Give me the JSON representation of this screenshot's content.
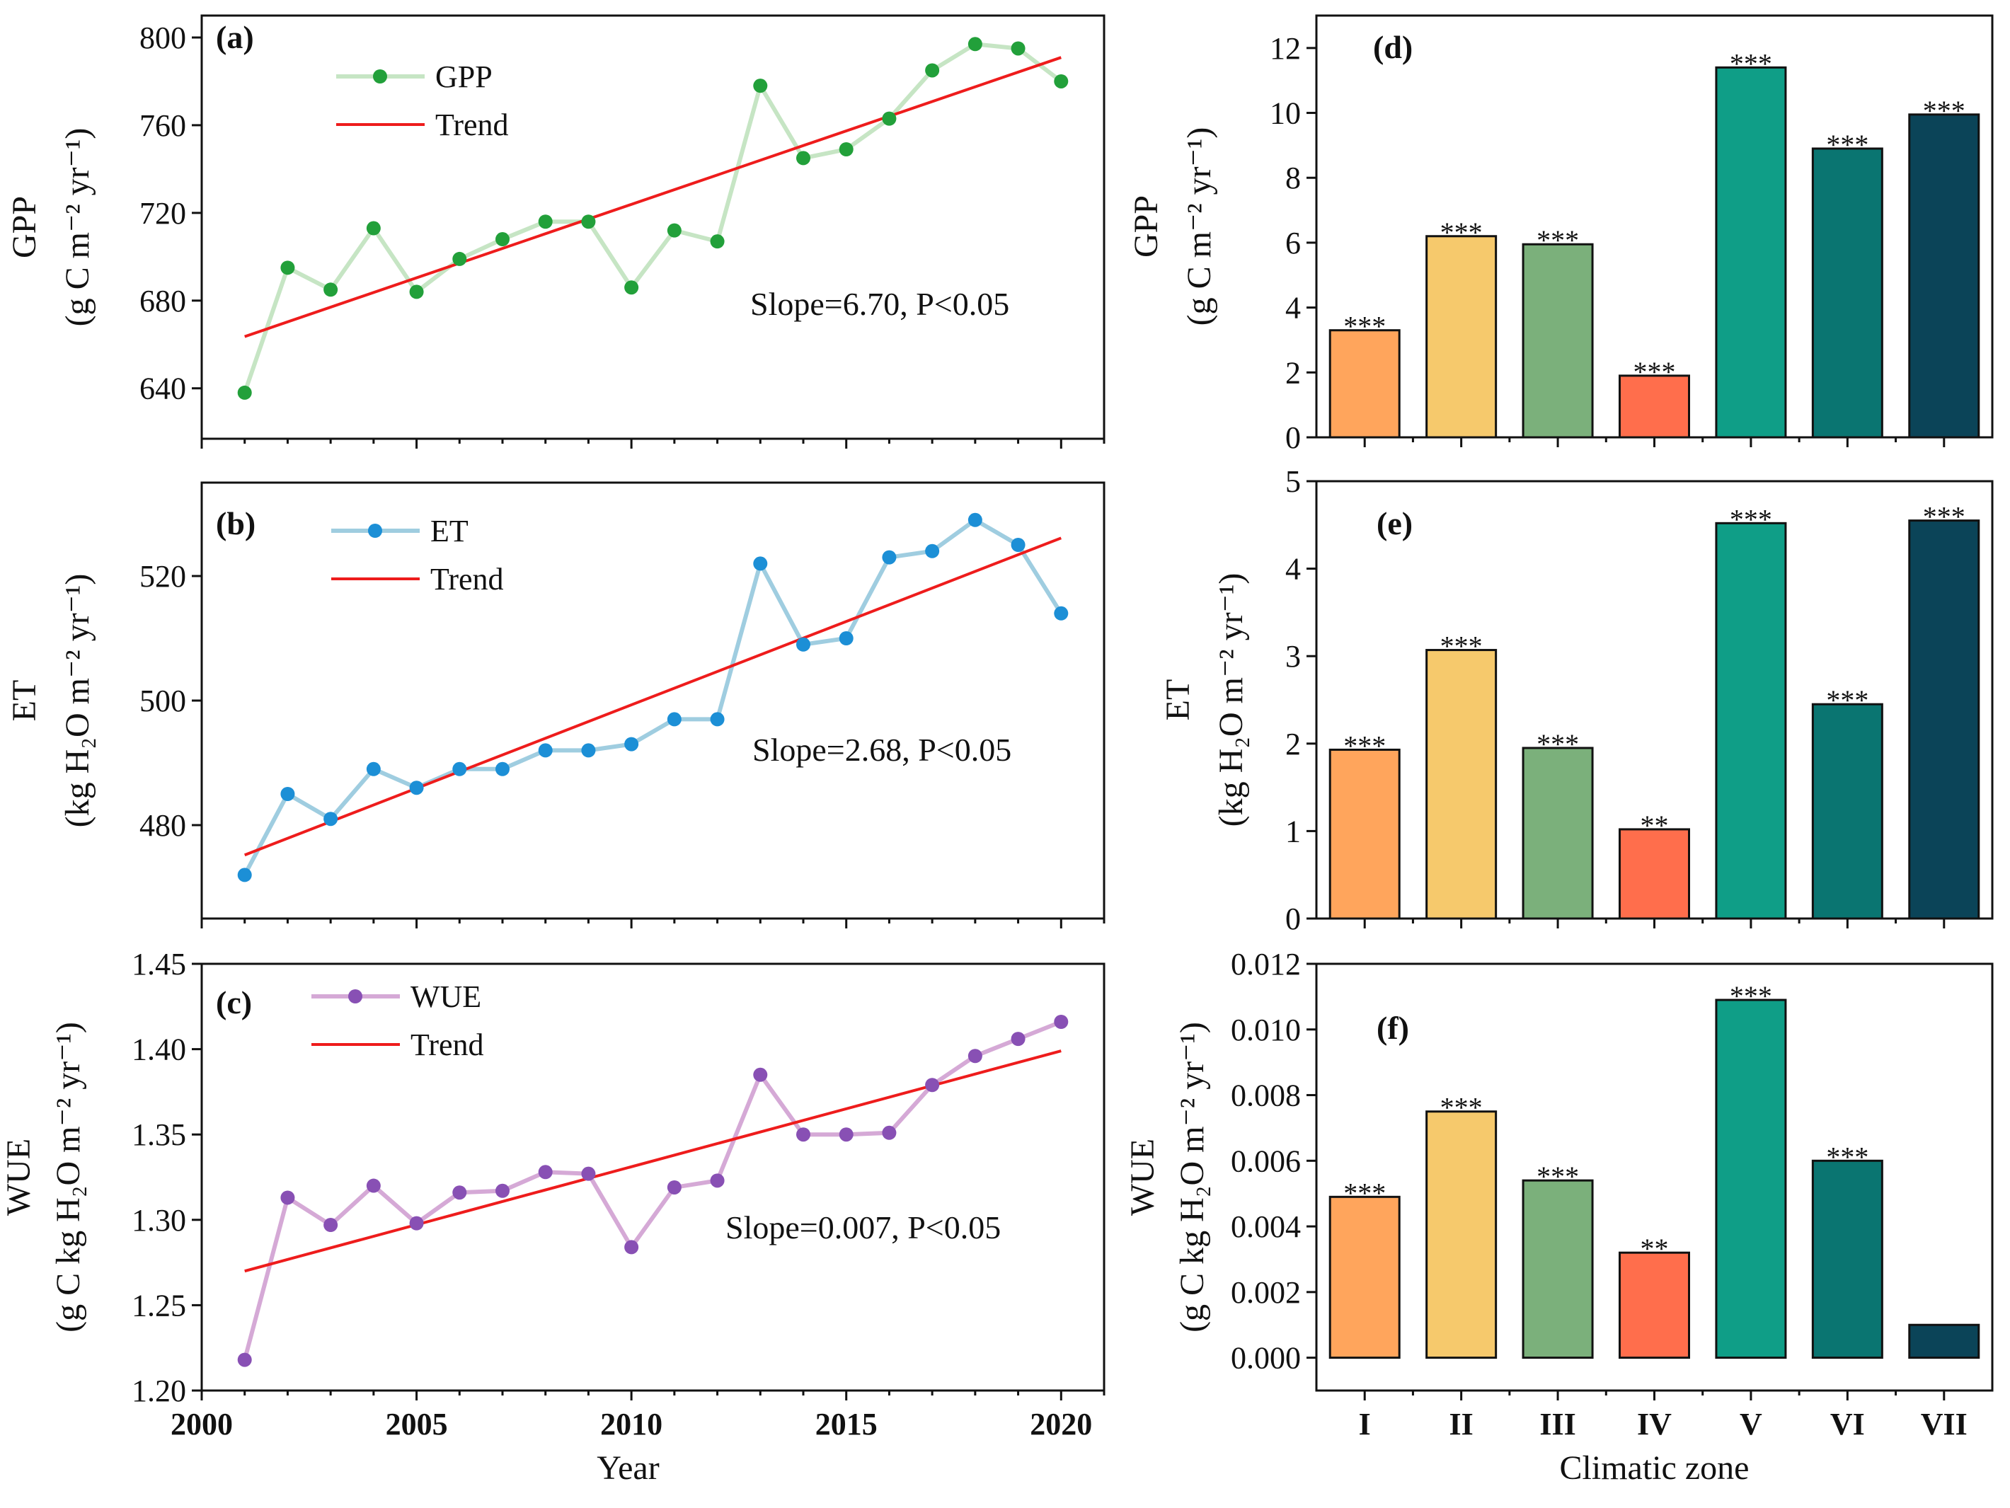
{
  "chart_data": [
    {
      "panel": "(a)",
      "type": "line",
      "x": [
        2001,
        2002,
        2003,
        2004,
        2005,
        2006,
        2007,
        2008,
        2009,
        2010,
        2011,
        2012,
        2013,
        2014,
        2015,
        2016,
        2017,
        2018,
        2019,
        2020
      ],
      "series": [
        {
          "name": "GPP",
          "color": "#22a03a",
          "line_color": "#c6e5c4",
          "values": [
            638,
            695,
            685,
            713,
            684,
            699,
            708,
            716,
            716,
            686,
            712,
            707,
            778,
            745,
            749,
            763,
            785,
            797,
            795,
            780
          ]
        },
        {
          "name": "Trend",
          "color": "#ee1c1c",
          "line": [
            663.6,
            790.9
          ]
        }
      ],
      "ylabel_main": "GPP",
      "ylabel_unit": "(g C m⁻² yr⁻¹)",
      "ylim": [
        617,
        810
      ],
      "yticks": [
        640,
        680,
        720,
        760,
        800
      ],
      "xlim": [
        2000,
        2021
      ],
      "annotation": "Slope=6.70, P<0.05"
    },
    {
      "panel": "(b)",
      "type": "line",
      "x": [
        2001,
        2002,
        2003,
        2004,
        2005,
        2006,
        2007,
        2008,
        2009,
        2010,
        2011,
        2012,
        2013,
        2014,
        2015,
        2016,
        2017,
        2018,
        2019,
        2020
      ],
      "series": [
        {
          "name": "ET",
          "color": "#1c8fd6",
          "line_color": "#9fcde0",
          "values": [
            472,
            485,
            481,
            489,
            486,
            489,
            489,
            492,
            492,
            493,
            497,
            497,
            522,
            509,
            510,
            523,
            524,
            529,
            525,
            514
          ]
        },
        {
          "name": "Trend",
          "color": "#ee1c1c",
          "line": [
            475.2,
            526.1
          ]
        }
      ],
      "ylabel_main": "ET",
      "ylabel_unit": "(kg H₂O m⁻² yr⁻¹)",
      "ylim": [
        465,
        535
      ],
      "yticks": [
        480,
        500,
        520
      ],
      "xlim": [
        2000,
        2021
      ],
      "annotation": "Slope=2.68, P<0.05"
    },
    {
      "panel": "(c)",
      "type": "line",
      "x": [
        2001,
        2002,
        2003,
        2004,
        2005,
        2006,
        2007,
        2008,
        2009,
        2010,
        2011,
        2012,
        2013,
        2014,
        2015,
        2016,
        2017,
        2018,
        2019,
        2020
      ],
      "series": [
        {
          "name": "WUE",
          "color": "#8850b4",
          "line_color": "#d5a9d6",
          "values": [
            1.218,
            1.313,
            1.297,
            1.32,
            1.298,
            1.316,
            1.317,
            1.328,
            1.327,
            1.284,
            1.319,
            1.323,
            1.385,
            1.35,
            1.35,
            1.351,
            1.379,
            1.396,
            1.406,
            1.416
          ]
        },
        {
          "name": "Trend",
          "color": "#ee1c1c",
          "line": [
            1.27,
            1.399
          ]
        }
      ],
      "ylabel_main": "WUE",
      "ylabel_unit": "(g C kg H₂O m⁻² yr⁻¹)",
      "ylim": [
        1.2,
        1.45
      ],
      "yticks": [
        1.2,
        1.25,
        1.3,
        1.35,
        1.4,
        1.45
      ],
      "xlim": [
        2000,
        2021
      ],
      "xticks": [
        2000,
        2005,
        2010,
        2015,
        2020
      ],
      "xlabel": "Year",
      "annotation": "Slope=0.007, P<0.05"
    },
    {
      "panel": "(d)",
      "type": "bar",
      "categories": [
        "I",
        "II",
        "III",
        "IV",
        "V",
        "VI",
        "VII"
      ],
      "values": [
        3.3,
        6.2,
        5.95,
        1.9,
        11.4,
        8.9,
        9.95
      ],
      "significance": [
        "***",
        "***",
        "***",
        "***",
        "***",
        "***",
        "***"
      ],
      "colors": [
        "#ffa55c",
        "#f6c96c",
        "#7bb07b",
        "#ff6e4c",
        "#0f9e87",
        "#0a7571",
        "#0b4458"
      ],
      "ylabel_main": "GPP",
      "ylabel_unit": "(g C m⁻² yr⁻¹)",
      "ylim": [
        0,
        13
      ],
      "yticks": [
        0,
        2,
        4,
        6,
        8,
        10,
        12
      ]
    },
    {
      "panel": "(e)",
      "type": "bar",
      "categories": [
        "I",
        "II",
        "III",
        "IV",
        "V",
        "VI",
        "VII"
      ],
      "values": [
        1.93,
        3.07,
        1.95,
        1.02,
        4.52,
        2.45,
        4.55
      ],
      "significance": [
        "***",
        "***",
        "***",
        "**",
        "***",
        "***",
        "***"
      ],
      "colors": [
        "#ffa55c",
        "#f6c96c",
        "#7bb07b",
        "#ff6e4c",
        "#0f9e87",
        "#0a7571",
        "#0b4458"
      ],
      "ylabel_main": "ET",
      "ylabel_unit": "(kg H₂O m⁻² yr⁻¹)",
      "ylim": [
        0,
        5
      ],
      "yticks": [
        0,
        1,
        2,
        3,
        4,
        5
      ]
    },
    {
      "panel": "(f)",
      "type": "bar",
      "categories": [
        "I",
        "II",
        "III",
        "IV",
        "V",
        "VI",
        "VII"
      ],
      "values": [
        0.0049,
        0.0075,
        0.0054,
        0.0032,
        0.0109,
        0.006,
        0.001
      ],
      "significance": [
        "***",
        "***",
        "***",
        "**",
        "***",
        "***",
        ""
      ],
      "colors": [
        "#ffa55c",
        "#f6c96c",
        "#7bb07b",
        "#ff6e4c",
        "#0f9e87",
        "#0a7571",
        "#0b4458"
      ],
      "ylabel_main": "WUE",
      "ylabel_unit": "(g C kg H₂O m⁻² yr⁻¹)",
      "ylim": [
        -0.001,
        0.012
      ],
      "yticks": [
        0,
        0.002,
        0.004,
        0.006,
        0.008,
        0.01,
        0.012
      ],
      "xlabel": "Climatic zone"
    }
  ]
}
